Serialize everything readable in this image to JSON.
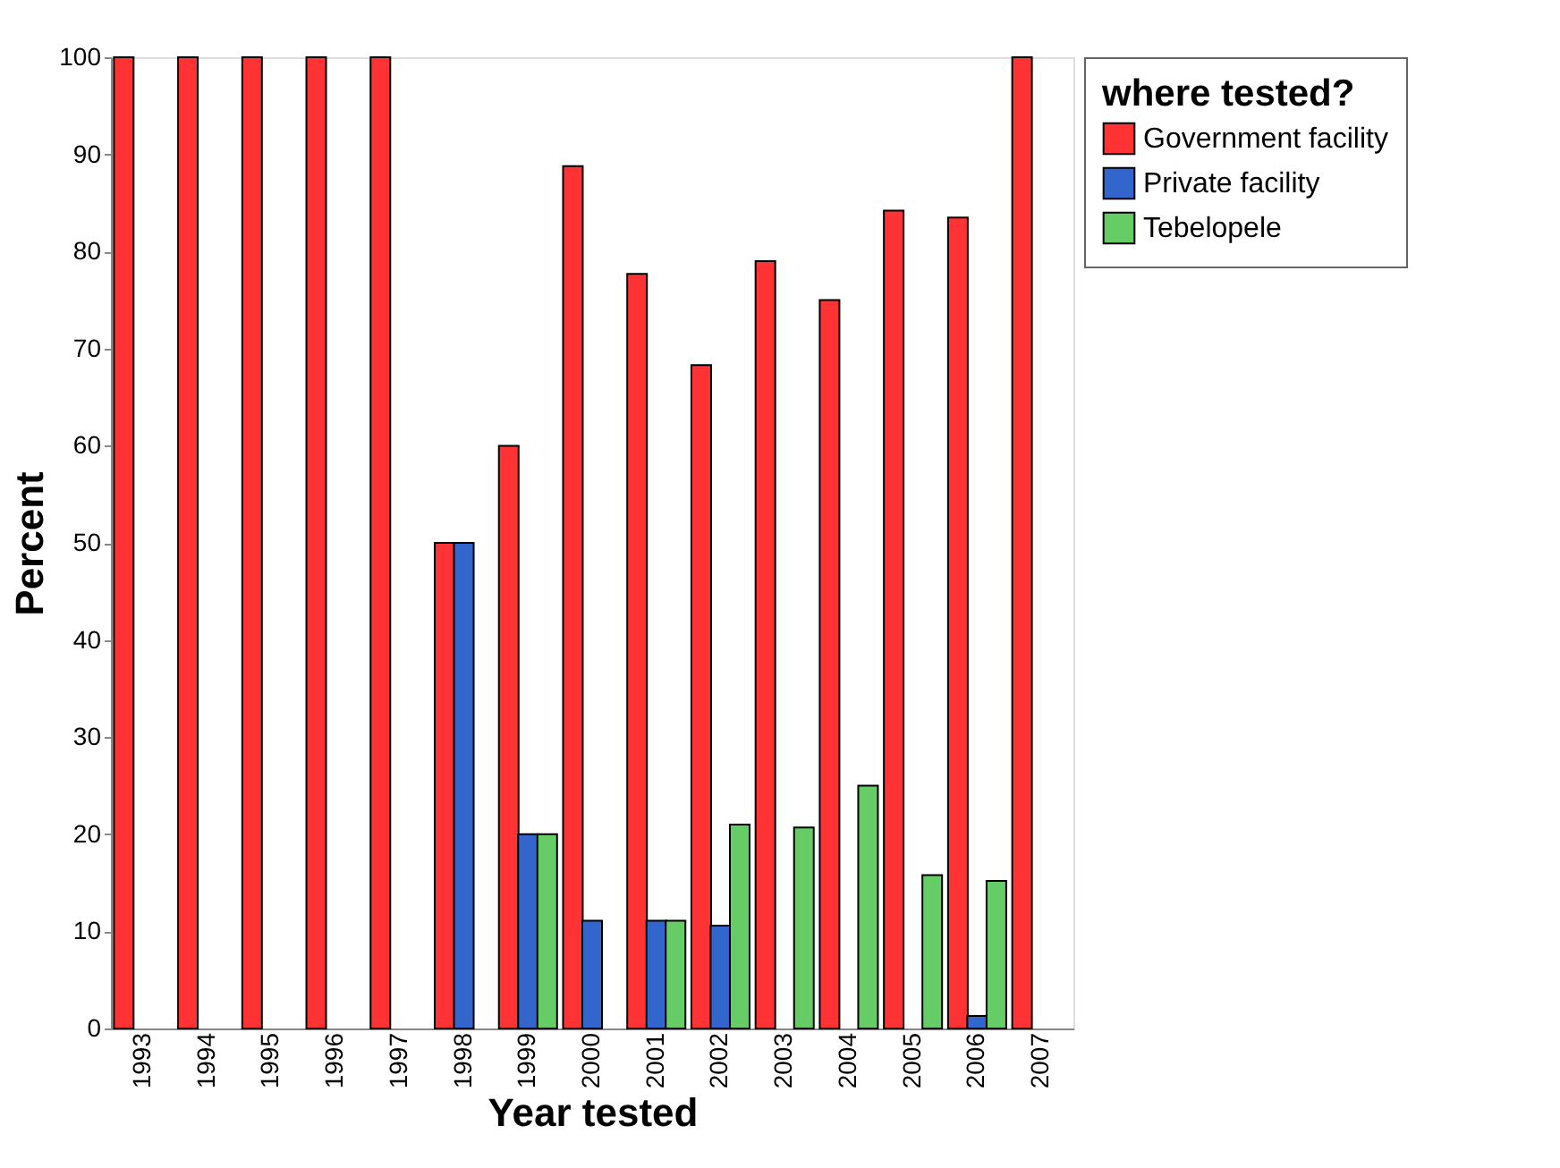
{
  "chart_data": {
    "type": "bar",
    "xlabel": "Year tested",
    "ylabel": "Percent",
    "legend_title": "where tested?",
    "categories": [
      "1993",
      "1994",
      "1995",
      "1996",
      "1997",
      "1998",
      "1999",
      "2000",
      "2001",
      "2002",
      "2003",
      "2004",
      "2005",
      "2006",
      "2007"
    ],
    "series": [
      {
        "name": "Government facility",
        "color": "#ff3333",
        "values": [
          100,
          100,
          100,
          100,
          100,
          50,
          60,
          88.8,
          77.7,
          68.3,
          79,
          75,
          84.2,
          83.5,
          100
        ]
      },
      {
        "name": "Private facility",
        "color": "#3366cc",
        "values": [
          null,
          null,
          null,
          null,
          null,
          50,
          20,
          11.1,
          11.1,
          10.6,
          null,
          null,
          null,
          1.3,
          null
        ]
      },
      {
        "name": "Tebelopele",
        "color": "#66cc66",
        "values": [
          null,
          null,
          null,
          null,
          null,
          null,
          20,
          null,
          11.1,
          21,
          20.7,
          25,
          15.8,
          15.2,
          null
        ]
      }
    ],
    "ylim": [
      0,
      100
    ],
    "yticks": [
      0,
      10,
      20,
      30,
      40,
      50,
      60,
      70,
      80,
      90,
      100
    ],
    "grid": false,
    "legend": "top right"
  }
}
